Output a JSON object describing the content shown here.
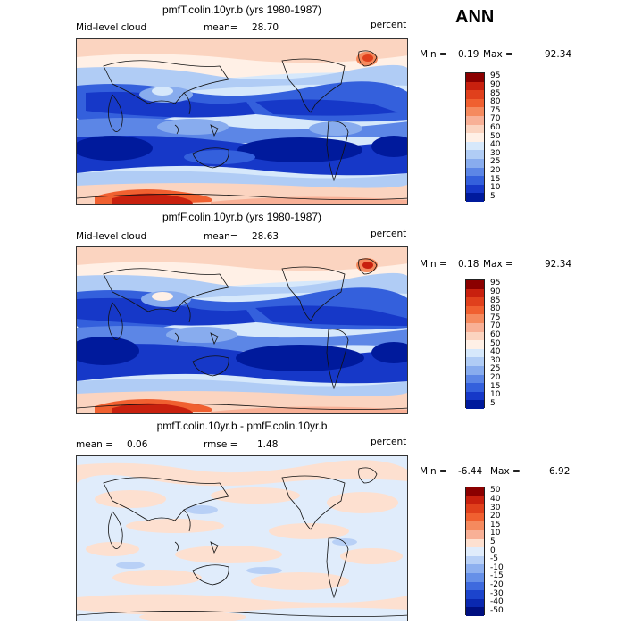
{
  "season": "ANN",
  "panels": [
    {
      "title": "pmfT.colin.10yr.b (yrs 1980-1987)",
      "left_label": "Mid-level cloud",
      "mean_label": "mean=",
      "mean_value": "28.70",
      "units": "percent",
      "min_label": "Min =",
      "min_value": "0.19",
      "max_label": "Max =",
      "max_value": "92.34",
      "levels": [
        "95",
        "90",
        "85",
        "80",
        "75",
        "70",
        "60",
        "50",
        "40",
        "30",
        "25",
        "20",
        "15",
        "10",
        "5"
      ]
    },
    {
      "title": "pmfF.colin.10yr.b (yrs 1980-1987)",
      "left_label": "Mid-level cloud",
      "mean_label": "mean=",
      "mean_value": "28.63",
      "units": "percent",
      "min_label": "Min =",
      "min_value": "0.18",
      "max_label": "Max =",
      "max_value": "92.34",
      "levels": [
        "95",
        "90",
        "85",
        "80",
        "75",
        "70",
        "60",
        "50",
        "40",
        "30",
        "25",
        "20",
        "15",
        "10",
        "5"
      ]
    },
    {
      "title": "pmfT.colin.10yr.b - pmfF.colin.10yr.b",
      "left_label": "mean =",
      "mean_label": "rmse =",
      "mean_value": "0.06",
      "rmse_value": "1.48",
      "units": "percent",
      "min_label": "Min =",
      "min_value": "-6.44",
      "max_label": "Max =",
      "max_value": "6.92",
      "levels": [
        "50",
        "40",
        "30",
        "20",
        "15",
        "10",
        "5",
        "0",
        "-5",
        "-10",
        "-15",
        "-20",
        "-30",
        "-40",
        "-50"
      ]
    }
  ],
  "colors": {
    "abs_scale": [
      "#8b0000",
      "#c8200e",
      "#e0401c",
      "#f06030",
      "#f58a5e",
      "#f8b096",
      "#fbd4c0",
      "#fff0e6",
      "#d6e8fb",
      "#b0ccf5",
      "#88acee",
      "#5c86e6",
      "#3460dc",
      "#1638c8",
      "#001a9c"
    ],
    "diff_scale": [
      "#8b0000",
      "#c8200e",
      "#e0401c",
      "#f06030",
      "#f58a5e",
      "#f8b096",
      "#fde0d0",
      "#e0ecfb",
      "#b8d0f6",
      "#8eb0ef",
      "#6690e8",
      "#3e6ade",
      "#1c44cc",
      "#0a28b0",
      "#000f80"
    ]
  }
}
